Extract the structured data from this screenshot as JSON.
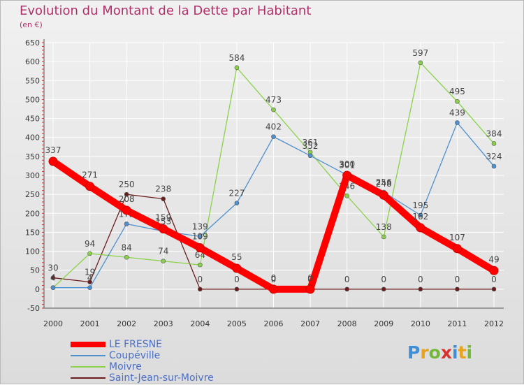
{
  "chart_data": {
    "type": "line",
    "title": "Evolution du Montant de la Dette par Habitant",
    "subtitle": "(en €)",
    "ylim": [
      -50,
      650
    ],
    "yticks": [
      -50,
      0,
      50,
      100,
      150,
      200,
      250,
      300,
      350,
      400,
      450,
      500,
      550,
      600,
      650
    ],
    "categories": [
      "2000",
      "2001",
      "2002",
      "2003",
      "2004",
      "2005",
      "2006",
      "2007",
      "2008",
      "2009",
      "2010",
      "2011",
      "2012"
    ],
    "grid": true,
    "legend_position": "bottom-left",
    "series": [
      {
        "name": "Saint-Jean-sur-Moivre",
        "color": "#6b1d1d",
        "values": [
          30,
          19,
          250,
          238,
          0,
          0,
          0,
          0,
          0,
          0,
          0,
          0,
          0
        ]
      },
      {
        "name": "Moivre",
        "color": "#8ad24a",
        "values": [
          4,
          94,
          84,
          74,
          64,
          584,
          473,
          361,
          246,
          138,
          597,
          495,
          384
        ]
      },
      {
        "name": "Coupéville",
        "color": "#4f90cf",
        "values": [
          4,
          4,
          172,
          153,
          139,
          227,
          402,
          352,
          301,
          256,
          195,
          439,
          324
        ]
      },
      {
        "name": "LE FRESNE",
        "color": "#ff0000",
        "values": [
          337,
          271,
          208,
          159,
          109,
          55,
          0,
          0,
          300,
          248,
          162,
          107,
          49
        ]
      }
    ]
  },
  "legend": {
    "items": [
      {
        "label": "LE FRESNE",
        "color": "#ff0000"
      },
      {
        "label": "Coupéville",
        "color": "#4f90cf"
      },
      {
        "label": "Moivre",
        "color": "#8ad24a"
      },
      {
        "label": "Saint-Jean-sur-Moivre",
        "color": "#6b1d1d"
      }
    ]
  },
  "logo": {
    "text": "Proxiti"
  }
}
